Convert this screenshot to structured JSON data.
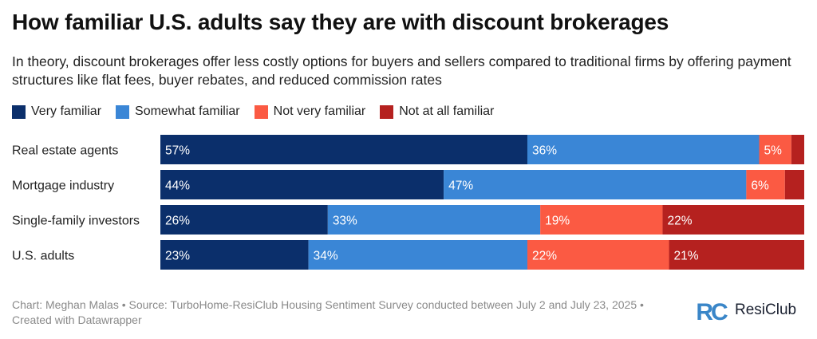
{
  "title": "How familiar U.S. adults say they are with discount brokerages",
  "subtitle": "In theory, discount brokerages offer less costly options for buyers and sellers compared to traditional firms by offering payment structures like flat fees, buyer rebates, and reduced commission rates",
  "footer": "Chart: Meghan Malas • Source: TurboHome-ResiClub Housing Sentiment Survey conducted between July 2 and July 23, 2025 • Created with Datawrapper",
  "logo": {
    "letters": "RC",
    "word": "ResiClub",
    "color": "#3a86c8"
  },
  "chart_data": {
    "type": "bar",
    "orientation": "horizontal",
    "stacked": true,
    "title": "How familiar U.S. adults say they are with discount brokerages",
    "categories": [
      "Real estate agents",
      "Mortgage industry",
      "Single-family investors",
      "U.S. adults"
    ],
    "series": [
      {
        "name": "Very familiar",
        "color": "#0b2f6b",
        "values": [
          57,
          44,
          26,
          23
        ],
        "labels": [
          "57%",
          "44%",
          "26%",
          "23%"
        ]
      },
      {
        "name": "Somewhat familiar",
        "color": "#3a86d6",
        "values": [
          36,
          47,
          33,
          34
        ],
        "labels": [
          "36%",
          "47%",
          "33%",
          "34%"
        ]
      },
      {
        "name": "Not very familiar",
        "color": "#fb5a43",
        "values": [
          5,
          6,
          19,
          22
        ],
        "labels": [
          "5%",
          "6%",
          "19%",
          "22%"
        ]
      },
      {
        "name": "Not at all familiar",
        "color": "#b5211f",
        "values": [
          2,
          3,
          22,
          21
        ],
        "labels": [
          "",
          "",
          "22%",
          "21%"
        ]
      }
    ],
    "legend": "top-left",
    "grid": false
  }
}
